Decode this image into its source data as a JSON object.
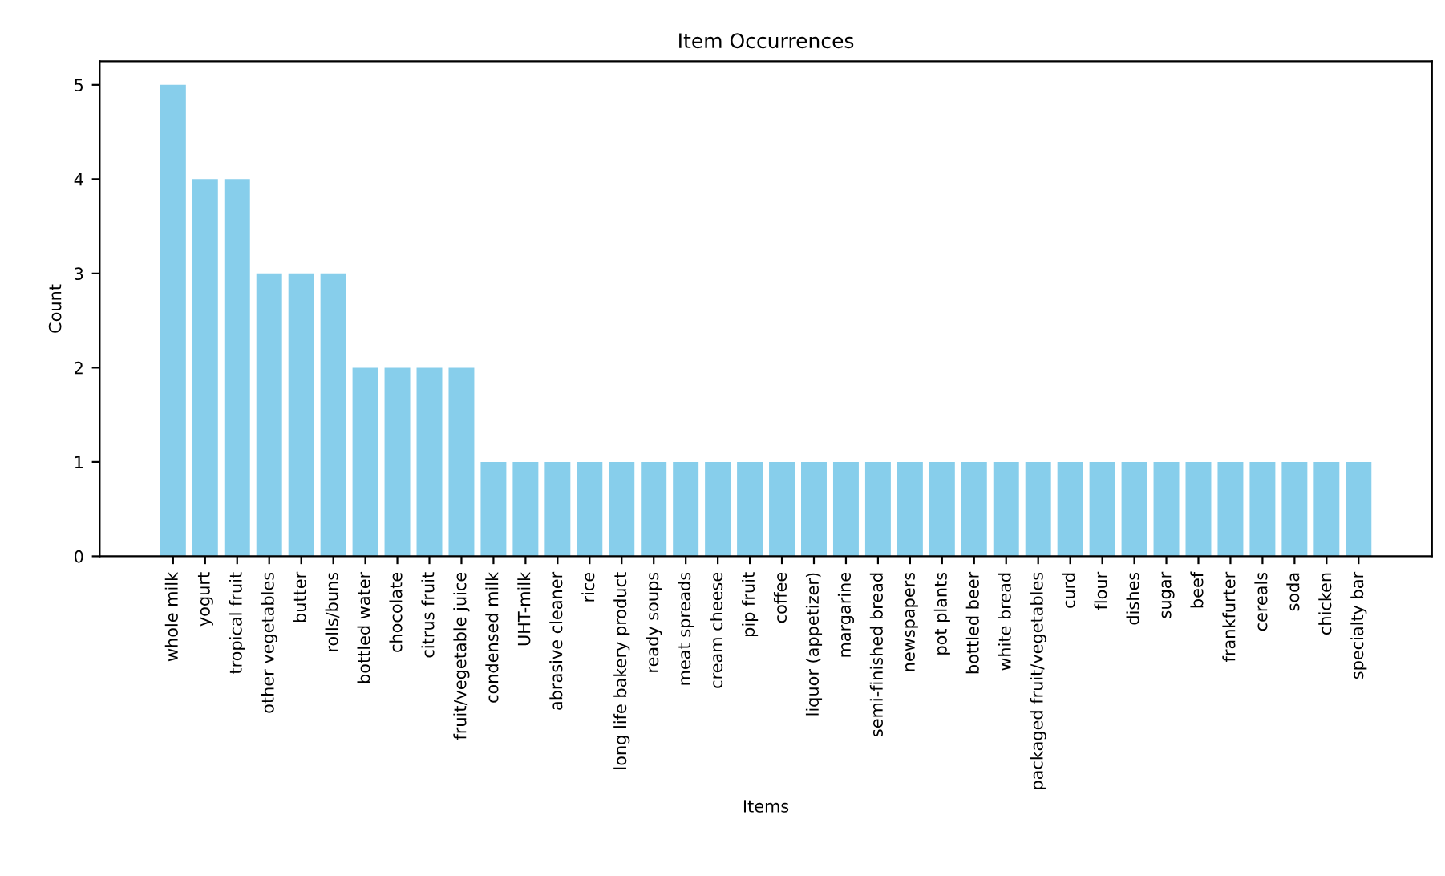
{
  "chart_data": {
    "type": "bar",
    "title": "Item Occurrences",
    "xlabel": "Items",
    "ylabel": "Count",
    "categories": [
      "whole milk",
      "yogurt",
      "tropical fruit",
      "other vegetables",
      "butter",
      "rolls/buns",
      "bottled water",
      "chocolate",
      "citrus fruit",
      "fruit/vegetable juice",
      "condensed milk",
      "UHT-milk",
      "abrasive cleaner",
      "rice",
      "long life bakery product",
      "ready soups",
      "meat spreads",
      "cream cheese",
      "pip fruit",
      "coffee",
      "liquor (appetizer)",
      "margarine",
      "semi-finished bread",
      "newspapers",
      "pot plants",
      "bottled beer",
      "white bread",
      "packaged fruit/vegetables",
      "curd",
      "flour",
      "dishes",
      "sugar",
      "beef",
      "frankfurter",
      "cereals",
      "soda",
      "chicken",
      "specialty bar"
    ],
    "values": [
      5,
      4,
      4,
      3,
      3,
      3,
      2,
      2,
      2,
      2,
      1,
      1,
      1,
      1,
      1,
      1,
      1,
      1,
      1,
      1,
      1,
      1,
      1,
      1,
      1,
      1,
      1,
      1,
      1,
      1,
      1,
      1,
      1,
      1,
      1,
      1,
      1,
      1
    ],
    "color": "#87ceeb",
    "ylim": [
      0,
      5.25
    ],
    "yticks": [
      0,
      1,
      2,
      3,
      4,
      5
    ],
    "grid": false
  }
}
